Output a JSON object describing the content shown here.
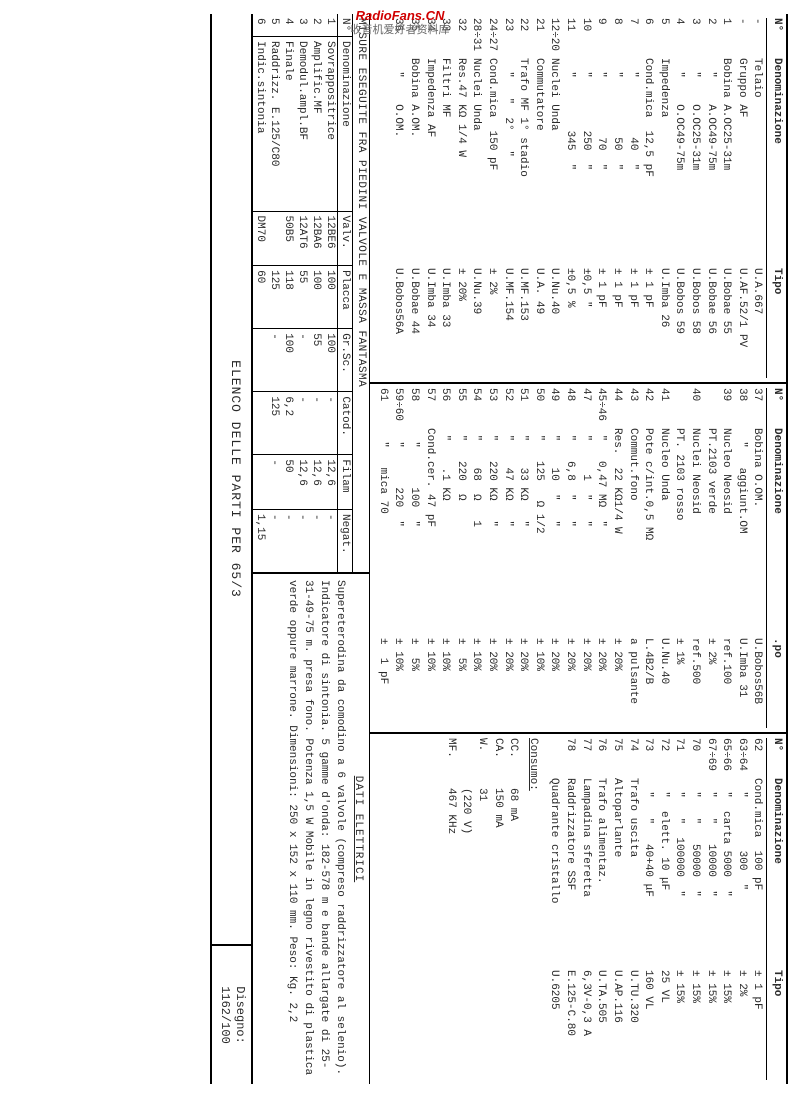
{
  "watermark": {
    "line1": "RadioFans.CN",
    "line2": "收音机爱好者资料库"
  },
  "headers": {
    "n": "N°",
    "den": "Denominazione",
    "tipo": "Tipo"
  },
  "col1": [
    {
      "n": "-",
      "d": "Telaio",
      "t": "U.A.667"
    },
    {
      "n": "-",
      "d": "Gruppo AF",
      "t": "U.AF.52/1 PV"
    },
    {
      "n": "1",
      "d": "Bobina A.OC25-31m",
      "t": "U.Bobae 55"
    },
    {
      "n": "2",
      "d": "  \"    A.OC49-75m",
      "t": "U.Bobae 56"
    },
    {
      "n": "3",
      "d": "  \"    O.OC25-31m",
      "t": "U.Bobos 58"
    },
    {
      "n": "4",
      "d": "  \"    O.OC49-75m",
      "t": "U.Bobos 59"
    },
    {
      "n": "5",
      "d": "Impedenza",
      "t": "U.Imba 26"
    },
    {
      "n": "6",
      "d": "Cond.mica  12,5 pF",
      "t": "± 1 pF"
    },
    {
      "n": "7",
      "d": "  \"         40  \"",
      "t": "± 1 pF"
    },
    {
      "n": "8",
      "d": "  \"         50  \"",
      "t": "± 1 pF"
    },
    {
      "n": "9",
      "d": "  \"         70  \"",
      "t": "± 1 pF"
    },
    {
      "n": "10",
      "d": "  \"        250  \"",
      "t": "±0,5 \""
    },
    {
      "n": "11",
      "d": "  \"        345  \"",
      "t": "±0,5 %"
    },
    {
      "n": "12÷20",
      "d": "Nuclei Unda",
      "t": "U.Nu.40"
    },
    {
      "n": "21",
      "d": "Commutatore",
      "t": "U.A. 49"
    },
    {
      "n": "",
      "d": "",
      "t": ""
    },
    {
      "n": "22",
      "d": "Trafo MF 1° stadio",
      "t": "U.MF.153"
    },
    {
      "n": "23",
      "d": "  \"   \"  2°   \"",
      "t": "U.MF.154"
    },
    {
      "n": "24÷27",
      "d": "Cond.mica  150 pF",
      "t": "± 2%"
    },
    {
      "n": "28÷31",
      "d": "Nuclei Unda",
      "t": "U.Nu.39"
    },
    {
      "n": "32",
      "d": "Res.47 KΩ 1/4 W",
      "t": "± 20%"
    },
    {
      "n": "",
      "d": "",
      "t": ""
    },
    {
      "n": "33",
      "d": "Filtri MF",
      "t": "U.Imba 33"
    },
    {
      "n": "34",
      "d": "Impedenza AF",
      "t": "U.Imba 34"
    },
    {
      "n": "35",
      "d": "Bobina A.OM.",
      "t": "U.Bobae 44"
    },
    {
      "n": "36",
      "d": "  \"    O.OM.",
      "t": "U.Bobos56A"
    }
  ],
  "col2": [
    {
      "n": "37",
      "d": "Bobina O.OM.",
      "t": "U.Bobos56B"
    },
    {
      "n": "38",
      "d": "  \"   aggiunt.OM",
      "t": "U.Imba 31"
    },
    {
      "n": "39",
      "d": "Nucleo Neosid",
      "t": "ref.100"
    },
    {
      "n": "",
      "d": "PT.2103 verde",
      "t": "± 2%"
    },
    {
      "n": "40",
      "d": "Nuclei Neosid",
      "t": "ref.500"
    },
    {
      "n": "",
      "d": "PT. 2103 rosso",
      "t": "± 1%"
    },
    {
      "n": "41",
      "d": "Nucleo Unda",
      "t": "U.Nu.40"
    },
    {
      "n": "42",
      "d": "Pote c/int.0,5 MΩ",
      "t": "L.4B2/B"
    },
    {
      "n": "43",
      "d": "Commut.fono",
      "t": "a pulsante"
    },
    {
      "n": "44",
      "d": "Res.  22 KΩ1/4 W",
      "t": "± 20%"
    },
    {
      "n": "45÷46",
      "d": " \"   0,47 MΩ  \"",
      "t": "± 20%"
    },
    {
      "n": "47",
      "d": " \"     1  \"   \"",
      "t": "± 20%"
    },
    {
      "n": "48",
      "d": " \"   6,8  \"   \"",
      "t": "± 20%"
    },
    {
      "n": "49",
      "d": " \"    10  \"   \"",
      "t": "± 20%"
    },
    {
      "n": "50",
      "d": " \"   125   Ω 1/2",
      "t": "± 10%"
    },
    {
      "n": "51",
      "d": " \"    33 KΩ   \"",
      "t": "± 20%"
    },
    {
      "n": "52",
      "d": " \"    47 KΩ   \"",
      "t": "± 20%"
    },
    {
      "n": "53",
      "d": " \"   220 KΩ   \"",
      "t": "± 20%"
    },
    {
      "n": "54",
      "d": " \"    68  Ω   1",
      "t": "± 10%"
    },
    {
      "n": "55",
      "d": " \"   220  Ω",
      "t": "±  5%"
    },
    {
      "n": "56",
      "d": " \"    .1 KΩ",
      "t": "± 10%"
    },
    {
      "n": "57",
      "d": "Cond.cer. 47 pF",
      "t": "± 10%"
    },
    {
      "n": "58",
      "d": "  \"      100  \"",
      "t": "±  5%"
    },
    {
      "n": "59÷60",
      "d": "  \"      220  \"",
      "t": "± 10%"
    },
    {
      "n": "61",
      "d": "  \"   mica 70",
      "t": "±  1 pF"
    }
  ],
  "col3": [
    {
      "n": "62",
      "d": "Cond.mica  100 pF",
      "t": "± 1 pF"
    },
    {
      "n": "63÷64",
      "d": "  \"        300  \"",
      "t": "± 2%"
    },
    {
      "n": "65÷66",
      "d": "  \"  carta 5000  \"",
      "t": "± 15%"
    },
    {
      "n": "67÷69",
      "d": "  \"   \"   10000  \"",
      "t": "± 15%"
    },
    {
      "n": "70",
      "d": "  \"   \"   50000  \"",
      "t": "± 15%"
    },
    {
      "n": "71",
      "d": "  \"   \"  100000  \"",
      "t": "± 15%"
    },
    {
      "n": "72",
      "d": "  \"  elett. 10 μF",
      "t": "25 VL"
    },
    {
      "n": "73",
      "d": "  \"   \"   40+40 μF",
      "t": "160 VL"
    },
    {
      "n": "74",
      "d": "Trafo uscita",
      "t": "U.TU.320"
    },
    {
      "n": "75",
      "d": "Altoparlante",
      "t": "U.AP.116"
    },
    {
      "n": "76",
      "d": "Trafo alimentaz.",
      "t": "U.TA.505"
    },
    {
      "n": "77",
      "d": "Lampadina sferetta",
      "t": "6,3V-0,3 A"
    },
    {
      "n": "78",
      "d": "Raddrizzatore SSF",
      "t": "E.125-C.80"
    },
    {
      "n": "",
      "d": "Quadrante cristallo",
      "t": "U.6205"
    }
  ],
  "consumo": {
    "title": "Consumo:",
    "rows": [
      {
        "l": "CC.",
        "v": "68 mA"
      },
      {
        "l": "CA.",
        "v": "150 mA"
      },
      {
        "l": "W.",
        "v": "31"
      },
      {
        "l": "",
        "v": "(220 V)"
      },
      {
        "l": "MF.",
        "v": "467 KHz"
      }
    ]
  },
  "measure": {
    "title": "MISURE ESEGUITE FRA PIEDINI VALVOLE E MASSA FANTASMA",
    "headers": [
      "N°",
      "Denominazione",
      "Valv.",
      "Placca",
      "Gr.Sc.",
      "Catod.",
      "Filam",
      "Negat."
    ],
    "rows": [
      [
        "1",
        "Sovrappositrice",
        "12BE6",
        "100",
        "100",
        "-",
        "12,6",
        "-"
      ],
      [
        "2",
        "Amplific.MF",
        "12BA6",
        "100",
        "55",
        "-",
        "12,6",
        "-"
      ],
      [
        "3",
        "Demodul.ampl.BF",
        "12AT6",
        "55",
        "-",
        "-",
        "12,6",
        "-"
      ],
      [
        "4",
        "Finale",
        "50B5",
        "118",
        "100",
        "6,2",
        "50",
        "-"
      ],
      [
        "5",
        "Raddrizz.    E.125/C80",
        "",
        "125",
        "-",
        "125",
        "-",
        "-"
      ],
      [
        "6",
        "Indic.sintonia",
        "DM70",
        "60",
        "",
        "",
        "",
        "1,15"
      ]
    ]
  },
  "dati": {
    "title": "DATI ELETTRICI",
    "text": "Supereterodina da comodino a 6 valvole (compreso raddrizzatore al selenio). Indicatore di sintonia. 5 gamme d'onda: 182-578 m e bande allargate di 25-31-49-75 m. presa fono. Potenza 1,5 W Mobile in legno rivestito di plastica verde oppure marrone. Dimensioni: 250 x 152 x 110 mm. Peso: Kg. 2,2"
  },
  "footer": {
    "left": "ELENCO DELLE PARTI PER   65/3",
    "right_l1": "Disegno:",
    "right_l2": "1162/100"
  }
}
